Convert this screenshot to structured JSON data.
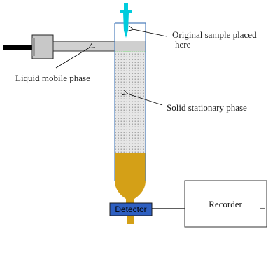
{
  "labels": {
    "sample_line1": "Original sample placed",
    "sample_line2": "here",
    "mobile_phase": "Liquid mobile phase",
    "stationary_phase": "Solid stationary phase",
    "detector": "Detector",
    "recorder": "Recorder",
    "recorder_mark": "_"
  },
  "colors": {
    "column_outline": "#4f81bd",
    "stationary_fill": "#d9d9d9",
    "stationary_dots": "#8c8c8c",
    "sample_band": "#d4a017",
    "detector_fill": "#2e5fc1",
    "pipette": "#00ccdd",
    "pump_body": "#c8c8c8",
    "pump_cable": "#000000",
    "solvent_top": "#a0e0a0"
  },
  "icons": [
    "syringe-icon",
    "pump-icon"
  ]
}
